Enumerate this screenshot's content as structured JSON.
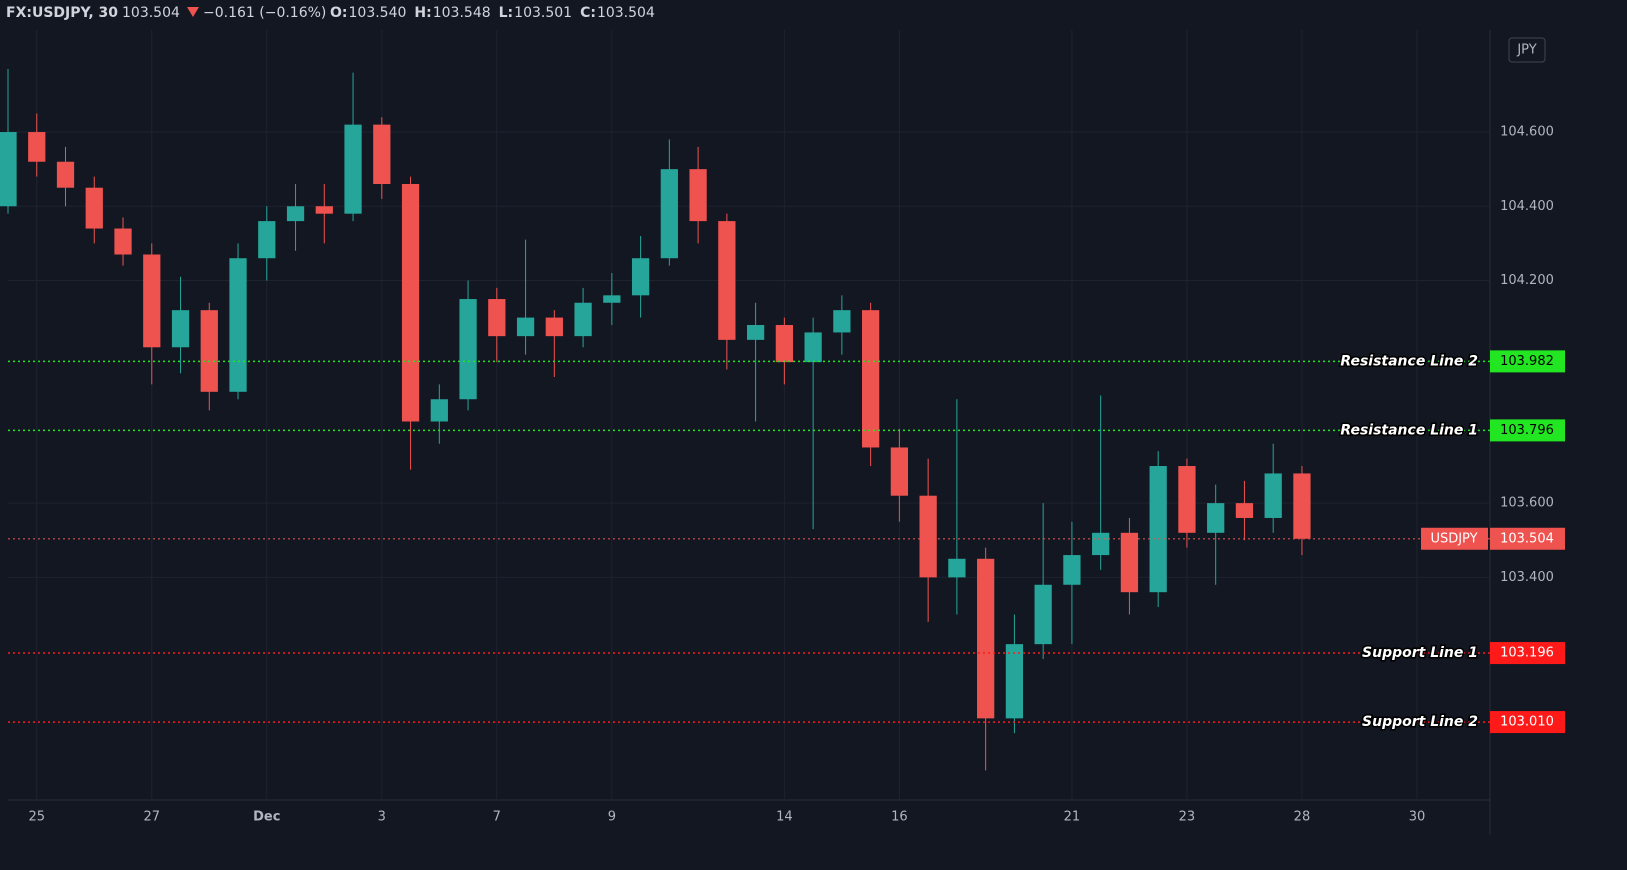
{
  "header": {
    "symbol": "FX:USDJPY, 30",
    "last": "103.504",
    "change": "−0.161 (−0.16%)",
    "ohlc": [
      {
        "key": "O:",
        "value": "103.540"
      },
      {
        "key": "H:",
        "value": "103.548"
      },
      {
        "key": "L:",
        "value": "103.501"
      },
      {
        "key": "C:",
        "value": "103.504"
      }
    ],
    "currency": "JPY"
  },
  "chart_data": {
    "type": "candlestick",
    "up_color": "#26a69a",
    "down_color": "#ef5350",
    "x": [
      -0.5,
      0,
      0.5,
      1,
      1.5,
      2,
      2.5,
      3,
      3.5,
      4,
      4.5,
      5,
      5.5,
      6,
      6.5,
      7,
      7.5,
      8,
      8.5,
      9,
      9.5,
      10,
      10.5,
      11,
      11.5,
      12,
      12.5,
      13,
      13.5,
      14,
      14.5,
      15,
      15.5,
      16,
      16.5,
      17,
      17.5,
      18,
      18.5,
      19,
      19.5,
      20,
      20.5,
      21,
      21.5,
      22
    ],
    "open": [
      104.4,
      104.6,
      104.52,
      104.45,
      104.34,
      104.27,
      104.02,
      104.12,
      103.9,
      104.26,
      104.36,
      104.4,
      104.38,
      104.62,
      104.46,
      103.82,
      103.88,
      104.15,
      104.05,
      104.1,
      104.05,
      104.14,
      104.16,
      104.26,
      104.5,
      104.36,
      104.04,
      104.08,
      103.98,
      104.06,
      104.12,
      103.75,
      103.62,
      103.4,
      103.45,
      103.02,
      103.22,
      103.38,
      103.46,
      103.52,
      103.36,
      103.7,
      103.52,
      103.6,
      103.56,
      103.68
    ],
    "high": [
      104.77,
      104.65,
      104.56,
      104.48,
      104.37,
      104.3,
      104.21,
      104.14,
      104.3,
      104.4,
      104.46,
      104.46,
      104.76,
      104.64,
      104.48,
      103.92,
      104.2,
      104.18,
      104.31,
      104.12,
      104.18,
      104.22,
      104.32,
      104.58,
      104.56,
      104.38,
      104.14,
      104.1,
      104.1,
      104.16,
      104.14,
      103.8,
      103.72,
      103.88,
      103.48,
      103.3,
      103.6,
      103.55,
      103.89,
      103.56,
      103.74,
      103.72,
      103.65,
      103.66,
      103.76,
      103.7
    ],
    "low": [
      104.38,
      104.48,
      104.4,
      104.3,
      104.24,
      103.92,
      103.95,
      103.85,
      103.88,
      104.2,
      104.28,
      104.3,
      104.36,
      104.42,
      103.69,
      103.76,
      103.85,
      103.98,
      104.0,
      103.94,
      104.02,
      104.08,
      104.1,
      104.24,
      104.3,
      103.96,
      103.82,
      103.92,
      103.53,
      104.0,
      103.7,
      103.55,
      103.28,
      103.3,
      102.88,
      102.98,
      103.18,
      103.22,
      103.42,
      103.3,
      103.32,
      103.48,
      103.38,
      103.5,
      103.52,
      103.46
    ],
    "close": [
      104.6,
      104.52,
      104.45,
      104.34,
      104.27,
      104.02,
      104.12,
      103.9,
      104.26,
      104.36,
      104.4,
      104.38,
      104.62,
      104.46,
      103.82,
      103.88,
      104.15,
      104.05,
      104.1,
      104.05,
      104.14,
      104.16,
      104.26,
      104.5,
      104.36,
      104.04,
      104.08,
      103.98,
      104.06,
      104.12,
      103.75,
      103.62,
      103.4,
      103.45,
      103.02,
      103.22,
      103.38,
      103.46,
      103.52,
      103.36,
      103.7,
      103.52,
      103.6,
      103.56,
      103.68,
      103.504
    ],
    "xlim": [
      -0.5,
      25.27
    ],
    "ylim": [
      102.8,
      104.875
    ],
    "xticks": [
      {
        "value": 0,
        "label": "25"
      },
      {
        "value": 2,
        "label": "27"
      },
      {
        "value": 4,
        "label": "Dec"
      },
      {
        "value": 6,
        "label": "3"
      },
      {
        "value": 8,
        "label": "7"
      },
      {
        "value": 10,
        "label": "9"
      },
      {
        "value": 13,
        "label": "14"
      },
      {
        "value": 15,
        "label": "16"
      },
      {
        "value": 18,
        "label": "21"
      },
      {
        "value": 20,
        "label": "23"
      },
      {
        "value": 22,
        "label": "28"
      },
      {
        "value": 24,
        "label": "30"
      }
    ],
    "yticks": [
      {
        "value": 103.4,
        "label": "103.400"
      },
      {
        "value": 103.6,
        "label": "103.600"
      },
      {
        "value": 104.2,
        "label": "104.200"
      },
      {
        "value": 104.4,
        "label": "104.400"
      },
      {
        "value": 104.6,
        "label": "104.600"
      }
    ],
    "grid": true,
    "levels": [
      {
        "name": "Resistance Line 2",
        "value": 103.982,
        "value_label": "103.982",
        "color": "#22e622"
      },
      {
        "name": "Resistance Line 1",
        "value": 103.796,
        "value_label": "103.796",
        "color": "#22e622"
      },
      {
        "name": "USDJPY",
        "value": 103.504,
        "value_label": "103.504",
        "color": "#ef5350"
      },
      {
        "name": "Support Line 1",
        "value": 103.196,
        "value_label": "103.196",
        "color": "#ff1a1a"
      },
      {
        "name": "Support Line 2",
        "value": 103.01,
        "value_label": "103.010",
        "color": "#ff1a1a"
      }
    ]
  }
}
